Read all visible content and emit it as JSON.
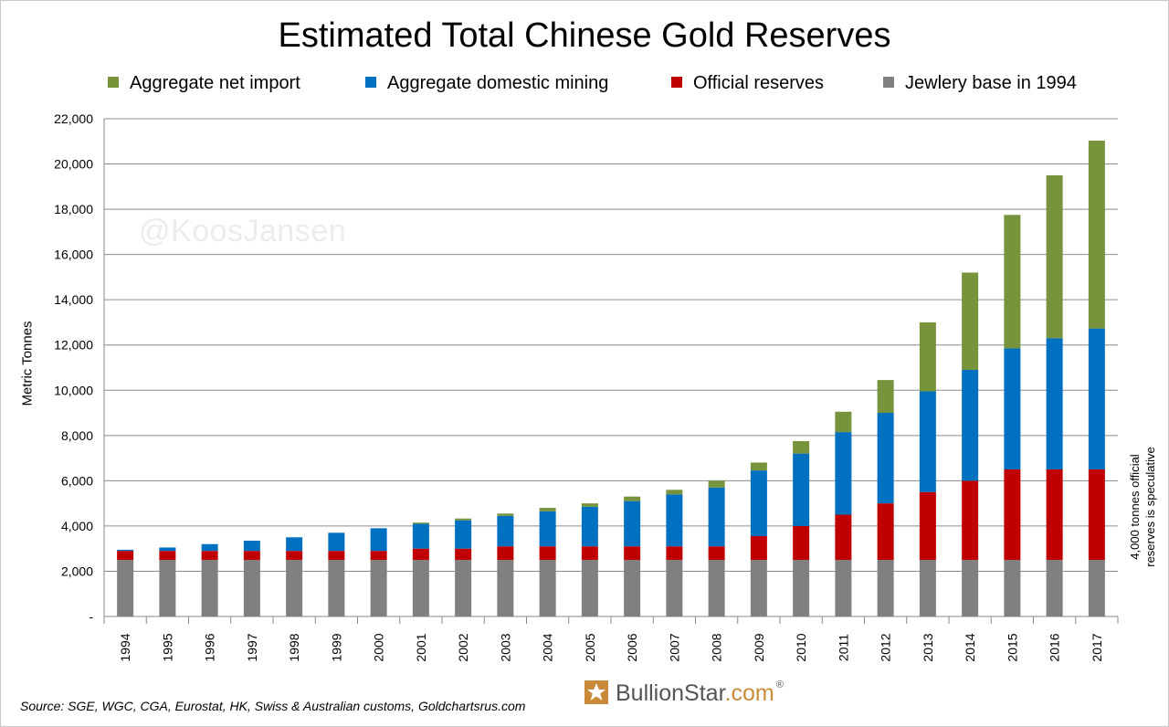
{
  "title": "Estimated Total Chinese Gold Reserves",
  "watermark": "@KoosJansen",
  "ylabel": "Metric Tonnes",
  "side_note": [
    "4,000 tonnes official",
    "reserves is speculative"
  ],
  "source": "Source: SGE, WGC, CGA, Eurostat, HK, Swiss & Australian customs, Goldchartsrus.com",
  "brand": {
    "name": "BullionStar",
    "suffix": ".com",
    "reg": "®"
  },
  "legend": [
    {
      "label": "Aggregate net import",
      "color": "#77933c"
    },
    {
      "label": "Aggregate domestic mining",
      "color": "#0070c0"
    },
    {
      "label": "Official reserves",
      "color": "#c00000"
    },
    {
      "label": "Jewlery base in 1994",
      "color": "#808080"
    }
  ],
  "chart_data": {
    "type": "bar",
    "stacked": true,
    "title": "Estimated Total Chinese Gold Reserves",
    "ylabel": "Metric Tonnes",
    "ylim": [
      0,
      22000
    ],
    "yticks": [
      "-",
      "2,000",
      "4,000",
      "6,000",
      "8,000",
      "10,000",
      "12,000",
      "14,000",
      "16,000",
      "18,000",
      "20,000",
      "22,000"
    ],
    "grid": true,
    "legend_position": "top",
    "categories": [
      "1994",
      "1995",
      "1996",
      "1997",
      "1998",
      "1999",
      "2000",
      "2001",
      "2002",
      "2003",
      "2004",
      "2005",
      "2006",
      "2007",
      "2008",
      "2009",
      "2010",
      "2011",
      "2012",
      "2013",
      "2014",
      "2015",
      "2016",
      "2017"
    ],
    "series": [
      {
        "name": "Jewlery base in 1994",
        "color": "#808080",
        "values": [
          2500,
          2500,
          2500,
          2500,
          2500,
          2500,
          2500,
          2500,
          2500,
          2500,
          2500,
          2500,
          2500,
          2500,
          2500,
          2500,
          2500,
          2500,
          2500,
          2500,
          2500,
          2500,
          2500,
          2500
        ]
      },
      {
        "name": "Official reserves",
        "color": "#c00000",
        "values": [
          400,
          400,
          400,
          400,
          400,
          400,
          400,
          500,
          500,
          600,
          600,
          600,
          600,
          600,
          600,
          1054,
          1500,
          2000,
          2500,
          3000,
          3500,
          4000,
          4000,
          4000
        ]
      },
      {
        "name": "Aggregate domestic mining",
        "color": "#0070c0",
        "values": [
          50,
          150,
          300,
          450,
          600,
          800,
          1000,
          1100,
          1250,
          1350,
          1550,
          1750,
          2000,
          2300,
          2600,
          2900,
          3200,
          3650,
          4000,
          4450,
          4900,
          5350,
          5800,
          6230
        ]
      },
      {
        "name": "Aggregate net import",
        "color": "#77933c",
        "values": [
          0,
          0,
          0,
          0,
          0,
          0,
          0,
          50,
          80,
          100,
          150,
          150,
          200,
          200,
          300,
          350,
          550,
          900,
          1450,
          3050,
          4300,
          5900,
          7200,
          8300
        ]
      }
    ]
  }
}
